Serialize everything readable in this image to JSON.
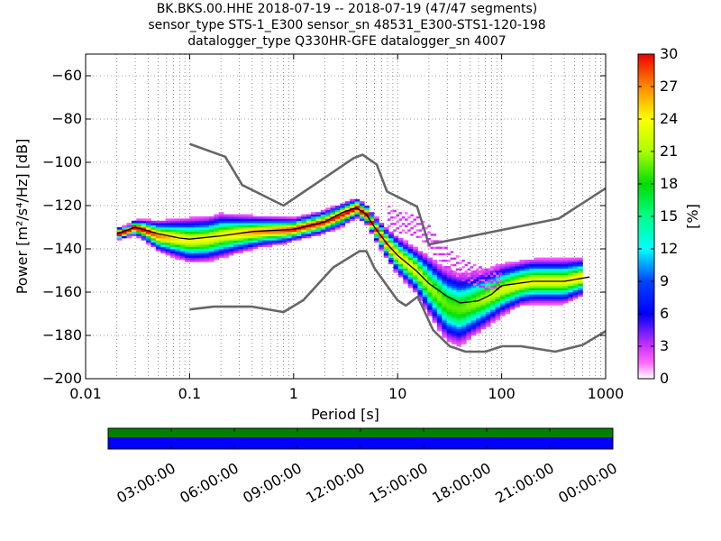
{
  "title": {
    "line1": "BK.BKS.00.HHE   2018-07-19 -- 2018-07-19  (47/47 segments)",
    "line2": "sensor_type STS-1_E300 sensor_sn 48531_E300-STS1-120-198",
    "line3": "datalogger_type Q330HR-GFE datalogger_sn 4007"
  },
  "colors": {
    "noise_model": "#666666",
    "mean_curve": "#000000",
    "coverage_green": "#008000",
    "coverage_blue": "#0000ff"
  },
  "chart_data": [
    {
      "type": "heatmap",
      "xlabel": "Period [s]",
      "ylabel": "Power [m²/s⁴/Hz] [dB]",
      "xscale": "log",
      "xlim": [
        0.01,
        1000
      ],
      "ylim": [
        -200,
        -50
      ],
      "x_tick_labels": [
        "0.01",
        "0.1",
        "1",
        "10",
        "100",
        "1000"
      ],
      "y_tick_labels": [
        "-60",
        "-80",
        "-100",
        "-120",
        "-140",
        "-160",
        "-180",
        "-200"
      ],
      "grid": "dotted",
      "colorbar": {
        "label": "[%]",
        "range": [
          0,
          30
        ],
        "tick_labels": [
          "0",
          "3",
          "6",
          "9",
          "12",
          "15",
          "18",
          "21",
          "24",
          "27",
          "30"
        ],
        "colormap": "pqlx"
      },
      "series": [
        {
          "name": "",
          "role": "new_high_noise_model",
          "x": [
            0.1,
            0.22,
            0.32,
            0.8,
            3.8,
            4.6,
            6.3,
            7.9,
            15.4,
            20
          ],
          "y": [
            -91.5,
            -97.4,
            -110.5,
            -120,
            -98,
            -96.5,
            -101,
            -113.5,
            -120.5,
            -138
          ]
        },
        {
          "name": "",
          "role": "high_noise_model_long_period",
          "x": [
            20,
            354.8,
            1000
          ],
          "y": [
            -138,
            -126,
            -112
          ]
        },
        {
          "name": "",
          "role": "new_low_noise_model",
          "x": [
            0.1,
            0.17,
            0.4,
            0.8,
            1.24,
            2.4,
            4.3,
            5,
            6,
            10,
            12,
            15.6,
            21.9,
            31.6,
            45,
            70,
            101,
            154,
            328,
            600,
            1000
          ],
          "y": [
            -168,
            -166.7,
            -166.7,
            -169.2,
            -163.7,
            -148.6,
            -141.1,
            -141.1,
            -149,
            -163.8,
            -166.2,
            -162.1,
            -177.5,
            -185,
            -187.5,
            -187.5,
            -185,
            -185,
            -187.5,
            -184.4,
            -178
          ]
        },
        {
          "name": "",
          "role": "mean_psd",
          "x": [
            0.02,
            0.03,
            0.05,
            0.08,
            0.1,
            0.2,
            0.4,
            1,
            2,
            3,
            4,
            5,
            6,
            8,
            10,
            15,
            20,
            30,
            40,
            60,
            80,
            100,
            200,
            400,
            700
          ],
          "y": [
            -133,
            -130,
            -133,
            -135,
            -135.5,
            -134,
            -132,
            -131,
            -127.5,
            -123,
            -121,
            -124,
            -130,
            -138,
            -143,
            -150,
            -156,
            -162,
            -165,
            -164,
            -161,
            -157,
            -155,
            -155,
            -153
          ]
        }
      ],
      "density_ridge": {
        "x": [
          0.02,
          0.025,
          0.03,
          0.04,
          0.05,
          0.07,
          0.1,
          0.15,
          0.2,
          0.3,
          0.5,
          0.8,
          1,
          1.5,
          2,
          3,
          4,
          5,
          6,
          8,
          10,
          15,
          20,
          25,
          30,
          40,
          50,
          70,
          100,
          150,
          200,
          300,
          400,
          600
        ],
        "y": [
          -133,
          -132,
          -130,
          -132,
          -134,
          -135,
          -136,
          -135.5,
          -134,
          -133,
          -132,
          -131.5,
          -131,
          -129,
          -127.5,
          -124,
          -121,
          -124,
          -130,
          -138,
          -143,
          -150,
          -157,
          -162,
          -166,
          -168,
          -166,
          -163,
          -159,
          -156,
          -155,
          -155,
          -155,
          -153
        ],
        "spread_db": [
          1.5,
          1.5,
          2,
          3,
          4,
          5,
          6,
          6,
          6,
          5,
          4,
          3.5,
          3,
          3,
          3,
          3,
          2.5,
          2.5,
          3,
          4,
          5,
          6,
          8,
          9,
          10,
          10,
          9,
          8,
          7,
          6,
          6,
          6,
          6,
          5
        ]
      },
      "outlier_band": {
        "x": [
          8,
          10,
          15,
          20,
          30,
          40,
          50,
          70,
          100
        ],
        "y": [
          -125,
          -128,
          -130,
          -135,
          -145,
          -150,
          -152,
          -155,
          -155
        ]
      }
    },
    {
      "type": "bar",
      "role": "data_coverage",
      "x_tick_labels": [
        "03:00:00",
        "06:00:00",
        "09:00:00",
        "12:00:00",
        "15:00:00",
        "18:00:00",
        "21:00:00",
        "00:00:00"
      ],
      "tracks": [
        {
          "name": "",
          "color": "#008000",
          "coverage": 1.0
        },
        {
          "name": "",
          "color": "#0000ff",
          "coverage": 1.0
        }
      ]
    }
  ]
}
